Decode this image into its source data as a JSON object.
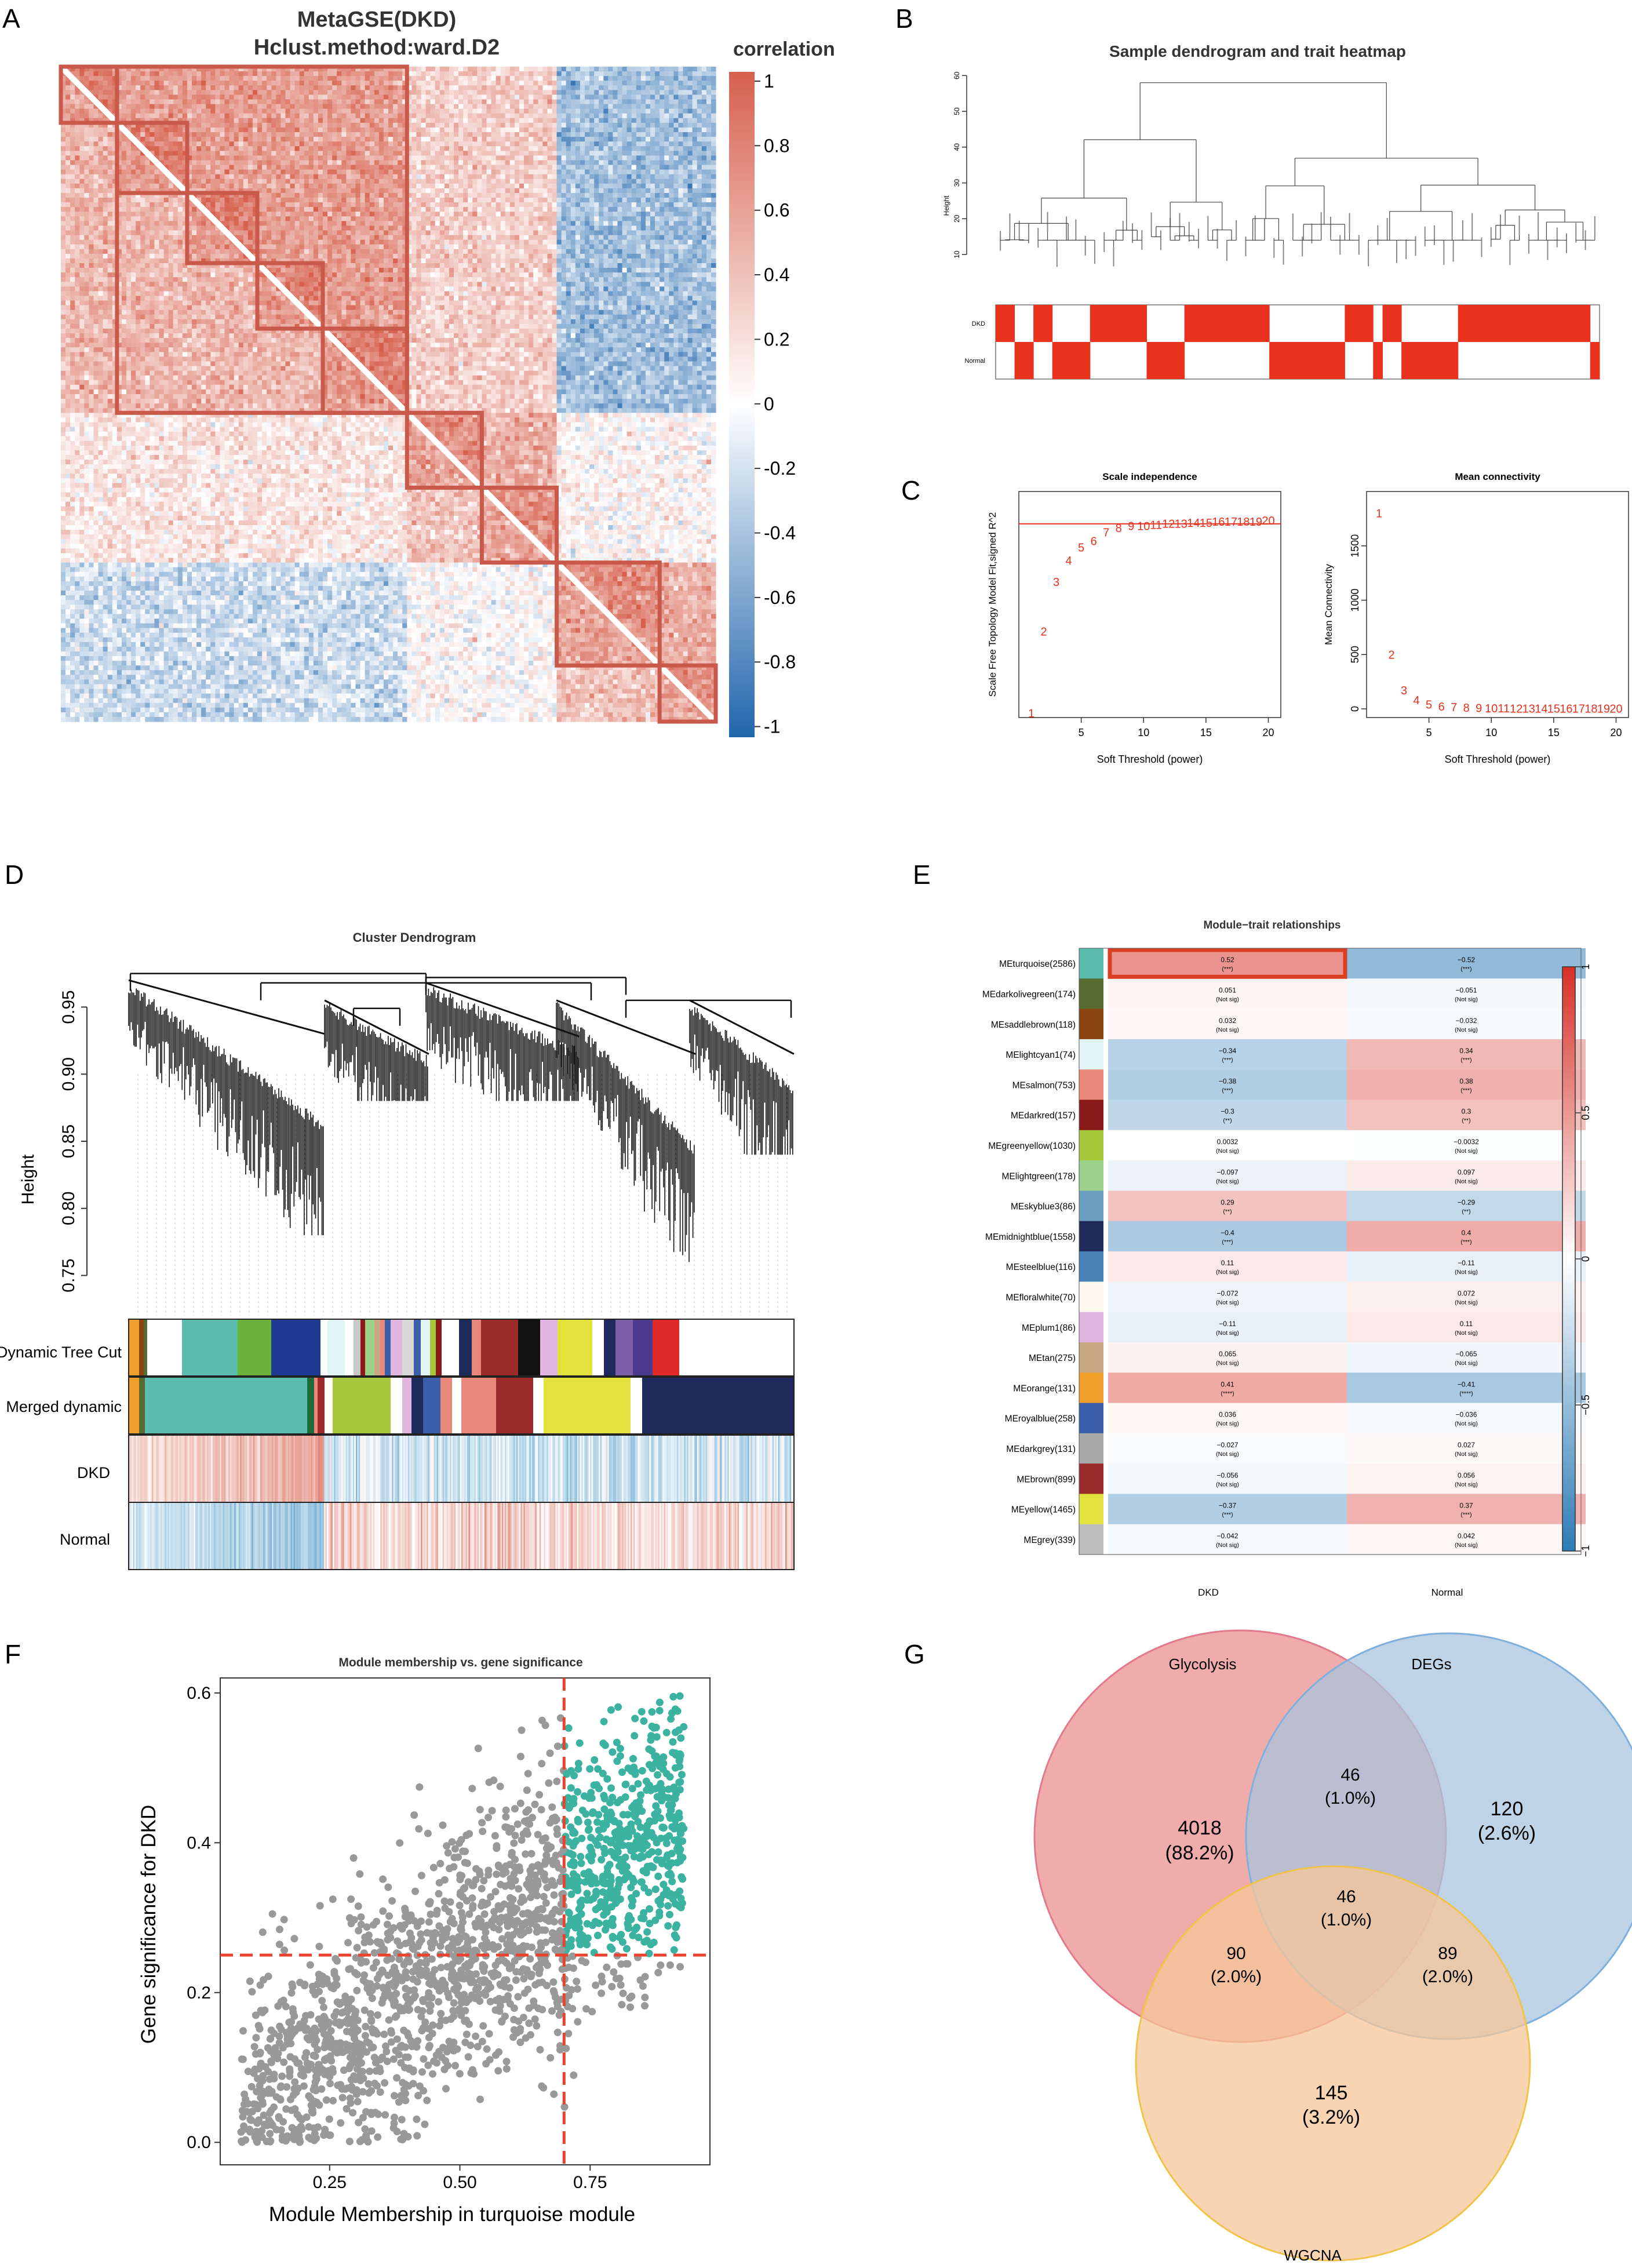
{
  "panel_labels": [
    "A",
    "B",
    "C",
    "D",
    "E",
    "F",
    "G"
  ],
  "chart_data": [
    {
      "panel": "A",
      "type": "heatmap",
      "title": "MetaGSE(DKD)",
      "subtitle": "Hclust.method:ward.D2",
      "legend_title": "correlation",
      "colorbar_ticks": [
        "1",
        "0.8",
        "0.6",
        "0.4",
        "0.2",
        "0",
        "-0.2",
        "-0.4",
        "-0.6",
        "-0.8",
        "-1"
      ],
      "colors": {
        "high": "#d6604d",
        "mid": "#ffffff",
        "low": "#2166ac"
      }
    },
    {
      "panel": "B",
      "type": "heatmap",
      "title": "Sample dendrogram and trait heatmap",
      "ylabel": "Height",
      "y_ticks": [
        "10",
        "20",
        "30",
        "40",
        "50",
        "60"
      ],
      "ylim": [
        5,
        62
      ],
      "rows": [
        "DKD",
        "Normal"
      ],
      "fill_color": "#e8321e",
      "dkd_pattern": [
        1,
        1,
        0,
        0,
        1,
        1,
        0,
        0,
        0,
        0,
        1,
        1,
        1,
        1,
        1,
        1,
        0,
        0,
        0,
        0,
        1,
        1,
        1,
        1,
        1,
        1,
        1,
        1,
        1,
        0,
        0,
        0,
        0,
        0,
        0,
        0,
        0,
        1,
        1,
        1,
        0,
        1,
        1,
        0,
        0,
        0,
        0,
        0,
        0,
        1,
        1,
        1,
        1,
        1,
        1,
        1,
        1,
        1,
        1,
        1,
        1,
        1,
        1,
        0
      ]
    },
    {
      "panel": "C",
      "type": "scatter",
      "title": "Scale independence",
      "xlabel": "Soft Threshold (power)",
      "ylabel": "Scale Free Topology Model Fit,signed R^2",
      "x_ticks": [
        5,
        10,
        15,
        20
      ],
      "xlim": [
        0,
        21
      ],
      "ylim": [
        0.0,
        1.05
      ],
      "y_ticks": [],
      "threshold_line": 0.9,
      "points": [
        {
          "x": 1,
          "y": 0.02
        },
        {
          "x": 2,
          "y": 0.4
        },
        {
          "x": 3,
          "y": 0.63
        },
        {
          "x": 4,
          "y": 0.73
        },
        {
          "x": 5,
          "y": 0.79
        },
        {
          "x": 6,
          "y": 0.82
        },
        {
          "x": 7,
          "y": 0.86
        },
        {
          "x": 8,
          "y": 0.88
        },
        {
          "x": 9,
          "y": 0.89
        },
        {
          "x": 10,
          "y": 0.89
        },
        {
          "x": 11,
          "y": 0.895
        },
        {
          "x": 12,
          "y": 0.9
        },
        {
          "x": 13,
          "y": 0.9
        },
        {
          "x": 14,
          "y": 0.905
        },
        {
          "x": 15,
          "y": 0.905
        },
        {
          "x": 16,
          "y": 0.91
        },
        {
          "x": 17,
          "y": 0.91
        },
        {
          "x": 18,
          "y": 0.91
        },
        {
          "x": 19,
          "y": 0.91
        },
        {
          "x": 20,
          "y": 0.915
        }
      ],
      "color": "#e8321e"
    },
    {
      "panel": "C",
      "type": "scatter",
      "title": "Mean connectivity",
      "xlabel": "Soft Threshold (power)",
      "ylabel": "Mean Connectivity",
      "x_ticks": [
        5,
        10,
        15,
        20
      ],
      "y_ticks": [
        0,
        500,
        1000,
        1500
      ],
      "xlim": [
        0,
        21
      ],
      "ylim": [
        -80,
        2000
      ],
      "points": [
        {
          "x": 1,
          "y": 1800
        },
        {
          "x": 2,
          "y": 500
        },
        {
          "x": 3,
          "y": 170
        },
        {
          "x": 4,
          "y": 80
        },
        {
          "x": 5,
          "y": 40
        },
        {
          "x": 6,
          "y": 22
        },
        {
          "x": 7,
          "y": 15
        },
        {
          "x": 8,
          "y": 10
        },
        {
          "x": 9,
          "y": 8
        },
        {
          "x": 10,
          "y": 6
        },
        {
          "x": 11,
          "y": 5
        },
        {
          "x": 12,
          "y": 4
        },
        {
          "x": 13,
          "y": 4
        },
        {
          "x": 14,
          "y": 3
        },
        {
          "x": 15,
          "y": 3
        },
        {
          "x": 16,
          "y": 3
        },
        {
          "x": 17,
          "y": 3
        },
        {
          "x": 18,
          "y": 2
        },
        {
          "x": 19,
          "y": 2
        },
        {
          "x": 20,
          "y": 2
        }
      ],
      "color": "#e8321e"
    },
    {
      "panel": "D",
      "type": "heatmap",
      "title": "Cluster Dendrogram",
      "ylabel": "Height",
      "y_ticks": [
        "0.95",
        "0.90",
        "0.85",
        "0.80",
        "0.75"
      ],
      "ylim": [
        0.72,
        0.98
      ],
      "rows": [
        "Dynamic Tree Cut",
        "Merged dynamic",
        "DKD",
        "Normal"
      ]
    },
    {
      "panel": "E",
      "type": "table",
      "title": "Module−trait relationships",
      "columns": [
        "DKD",
        "Normal"
      ],
      "colorbar_ticks": [
        "1",
        "0.5",
        "0",
        "−0.5",
        "−1"
      ],
      "rows": [
        {
          "name": "MEturquoise(2586)",
          "color": "#5bbcb0",
          "dkd": "0.52",
          "dkd_p": "(***)",
          "normal": "−0.52",
          "normal_p": "(***)",
          "v": 0.52
        },
        {
          "name": "MEdarkolivegreen(174)",
          "color": "#556b2f",
          "dkd": "0.051",
          "dkd_p": "(Not sig)",
          "normal": "−0.051",
          "normal_p": "(Not sig)",
          "v": 0.051
        },
        {
          "name": "MEsaddlebrown(118)",
          "color": "#8b4513",
          "dkd": "0.032",
          "dkd_p": "(Not sig)",
          "normal": "−0.032",
          "normal_p": "(Not sig)",
          "v": 0.032
        },
        {
          "name": "MElightcyan1(74)",
          "color": "#e0f4f4",
          "dkd": "−0.34",
          "dkd_p": "(***)",
          "normal": "0.34",
          "normal_p": "(***)",
          "v": -0.34
        },
        {
          "name": "MEsalmon(753)",
          "color": "#e9877a",
          "dkd": "−0.38",
          "dkd_p": "(***)",
          "normal": "0.38",
          "normal_p": "(***)",
          "v": -0.38
        },
        {
          "name": "MEdarkred(157)",
          "color": "#8b1a1a",
          "dkd": "−0.3",
          "dkd_p": "(**)",
          "normal": "0.3",
          "normal_p": "(**)",
          "v": -0.3
        },
        {
          "name": "MEgreenyellow(1030)",
          "color": "#a6c63b",
          "dkd": "0.0032",
          "dkd_p": "(Not sig)",
          "normal": "−0.0032",
          "normal_p": "(Not sig)",
          "v": 0.0032
        },
        {
          "name": "MElightgreen(178)",
          "color": "#9cd18a",
          "dkd": "−0.097",
          "dkd_p": "(Not sig)",
          "normal": "0.097",
          "normal_p": "(Not sig)",
          "v": -0.097
        },
        {
          "name": "MEskyblue3(86)",
          "color": "#6c9ec3",
          "dkd": "0.29",
          "dkd_p": "(**)",
          "normal": "−0.29",
          "normal_p": "(**)",
          "v": 0.29
        },
        {
          "name": "MEmidnightblue(1558)",
          "color": "#1f2a5c",
          "dkd": "−0.4",
          "dkd_p": "(***)",
          "normal": "0.4",
          "normal_p": "(***)",
          "v": -0.4
        },
        {
          "name": "MEsteelblue(116)",
          "color": "#4682b4",
          "dkd": "0.11",
          "dkd_p": "(Not sig)",
          "normal": "−0.11",
          "normal_p": "(Not sig)",
          "v": 0.11
        },
        {
          "name": "MEfloralwhite(70)",
          "color": "#fffaf0",
          "dkd": "−0.072",
          "dkd_p": "(Not sig)",
          "normal": "0.072",
          "normal_p": "(Not sig)",
          "v": -0.072
        },
        {
          "name": "MEplum1(86)",
          "color": "#e0b6e0",
          "dkd": "−0.11",
          "dkd_p": "(Not sig)",
          "normal": "0.11",
          "normal_p": "(Not sig)",
          "v": -0.11
        },
        {
          "name": "MEtan(275)",
          "color": "#c8a882",
          "dkd": "0.065",
          "dkd_p": "(Not sig)",
          "normal": "−0.065",
          "normal_p": "(Not sig)",
          "v": 0.065
        },
        {
          "name": "MEorange(131)",
          "color": "#f0a02a",
          "dkd": "0.41",
          "dkd_p": "(****)",
          "normal": "−0.41",
          "normal_p": "(****)",
          "v": 0.41
        },
        {
          "name": "MEroyalblue(258)",
          "color": "#3b5fa8",
          "dkd": "0.036",
          "dkd_p": "(Not sig)",
          "normal": "−0.036",
          "normal_p": "(Not sig)",
          "v": 0.036
        },
        {
          "name": "MEdarkgrey(131)",
          "color": "#a9a9a9",
          "dkd": "−0.027",
          "dkd_p": "(Not sig)",
          "normal": "0.027",
          "normal_p": "(Not sig)",
          "v": -0.027
        },
        {
          "name": "MEbrown(899)",
          "color": "#9b2a2a",
          "dkd": "−0.056",
          "dkd_p": "(Not sig)",
          "normal": "0.056",
          "normal_p": "(Not sig)",
          "v": -0.056
        },
        {
          "name": "MEyellow(1465)",
          "color": "#e3e23c",
          "dkd": "−0.37",
          "dkd_p": "(***)",
          "normal": "0.37",
          "normal_p": "(***)",
          "v": -0.37
        },
        {
          "name": "MEgrey(339)",
          "color": "#bebebe",
          "dkd": "−0.042",
          "dkd_p": "(Not sig)",
          "normal": "0.042",
          "normal_p": "(Not sig)",
          "v": -0.042
        }
      ]
    },
    {
      "panel": "F",
      "type": "scatter",
      "title": "Module membership vs. gene significance",
      "xlabel": "Module Membership in turquoise module",
      "ylabel": "Gene significance for DKD",
      "x_ticks": [
        "0.25",
        "0.50",
        "0.75"
      ],
      "y_ticks": [
        "0.0",
        "0.2",
        "0.4",
        "0.6"
      ],
      "xlim": [
        0.04,
        0.98
      ],
      "ylim": [
        -0.03,
        0.62
      ],
      "vline": 0.7,
      "hline": 0.25,
      "colors": {
        "points": "#999999",
        "highlight": "#3bb3a0",
        "lines": "#e8432e"
      }
    },
    {
      "panel": "G",
      "type": "venn",
      "sets": [
        {
          "name": "Glycolysis",
          "color": "#eb8f8f",
          "stroke": "#e07a8c"
        },
        {
          "name": "DEGs",
          "color": "#a9c4dd",
          "stroke": "#7fb0dc"
        },
        {
          "name": "WGCNA",
          "color": "#f5c598",
          "stroke": "#f0c34a"
        }
      ],
      "regions": [
        {
          "id": "glycolysis_only",
          "count": "4018",
          "pct": "(88.2%)"
        },
        {
          "id": "glycolysis_degs",
          "count": "46",
          "pct": "(1.0%)"
        },
        {
          "id": "degs_only",
          "count": "120",
          "pct": "(2.6%)"
        },
        {
          "id": "all_three",
          "count": "46",
          "pct": "(1.0%)"
        },
        {
          "id": "glycolysis_wgcna",
          "count": "90",
          "pct": "(2.0%)"
        },
        {
          "id": "degs_wgcna",
          "count": "89",
          "pct": "(2.0%)"
        },
        {
          "id": "wgcna_only",
          "count": "145",
          "pct": "(3.2%)"
        }
      ]
    }
  ]
}
